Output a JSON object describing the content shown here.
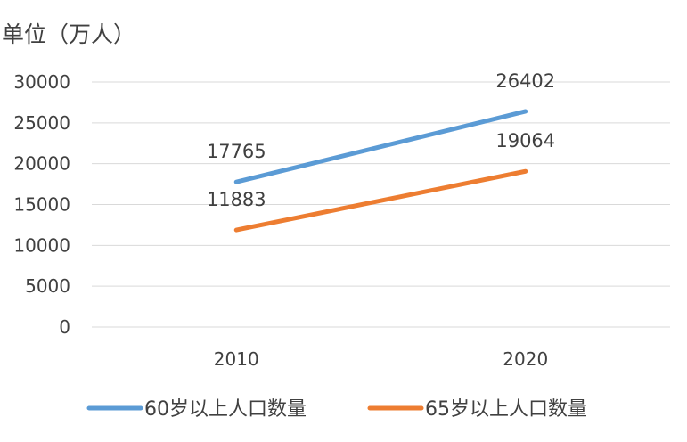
{
  "chart_data": {
    "type": "line",
    "title": "",
    "unit_label": "单位（万人）",
    "xlabel": "",
    "ylabel": "",
    "categories": [
      "2010",
      "2020"
    ],
    "series": [
      {
        "name": "60岁以上人口数量",
        "values": [
          17765,
          26402
        ],
        "labels": [
          "17765",
          "26402"
        ],
        "color": "#5B9BD5"
      },
      {
        "name": "65岁以上人口数量",
        "values": [
          11883,
          19064
        ],
        "labels": [
          "11883",
          "19064"
        ],
        "color": "#ED7D31"
      }
    ],
    "ylim": [
      0,
      30000
    ],
    "yticks": [
      "0",
      "5000",
      "10000",
      "15000",
      "20000",
      "25000",
      "30000"
    ],
    "grid": true,
    "legend": "bottom"
  }
}
